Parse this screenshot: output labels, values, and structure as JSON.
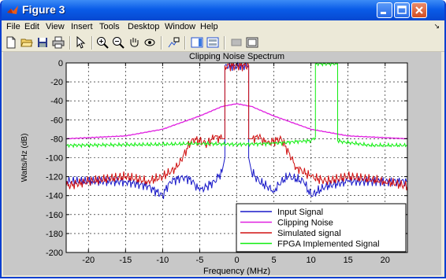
{
  "window": {
    "title": "Figure 3"
  },
  "menu": {
    "items": [
      "File",
      "Edit",
      "View",
      "Insert",
      "Tools",
      "Desktop",
      "Window",
      "Help"
    ]
  },
  "toolbar": {
    "icons": [
      "new-file-icon",
      "open-folder-icon",
      "save-icon",
      "print-icon",
      "arrow-select-icon",
      "zoom-in-icon",
      "zoom-out-icon",
      "pan-hand-icon",
      "rotate-3d-icon",
      "data-cursor-icon",
      "insert-colorbar-icon",
      "insert-legend-icon",
      "hide-plot-tools-icon",
      "show-plot-tools-icon"
    ]
  },
  "colors": {
    "input": "#1818c8",
    "clipping": "#e020e0",
    "simulated": "#d01010",
    "fpga": "#10ee10"
  },
  "chart_data": {
    "type": "line",
    "title": "Clipping Noise Spectrum",
    "xlabel": "Frequency (MHz)",
    "ylabel": "Watts/Hz (dB)",
    "xlim": [
      -23,
      23
    ],
    "ylim": [
      -200,
      0
    ],
    "xticks": [
      -20,
      -15,
      -10,
      -5,
      0,
      5,
      10,
      15,
      20
    ],
    "yticks": [
      0,
      -20,
      -40,
      -60,
      -80,
      -100,
      -120,
      -140,
      -160,
      -180,
      -200
    ],
    "grid": true,
    "legend_position": "bottom-right",
    "series": [
      {
        "name": "Input Signal",
        "x": [
          -23,
          -15,
          -12,
          -10,
          -9,
          -7,
          -6,
          -5,
          -4,
          -3,
          -2,
          -1.6,
          -1.6,
          1.6,
          1.6,
          2,
          3,
          4,
          5,
          6,
          7,
          9,
          10,
          12,
          15,
          23
        ],
        "y": [
          -125,
          -125,
          -130,
          -140,
          -125,
          -120,
          -125,
          -135,
          -130,
          -125,
          -115,
          -100,
          -3,
          -3,
          -100,
          -115,
          -125,
          -130,
          -135,
          -125,
          -120,
          -125,
          -140,
          -130,
          -125,
          -125
        ]
      },
      {
        "name": "Clipping Noise",
        "x": [
          -23,
          -15,
          -10,
          -5,
          -2,
          0,
          2,
          5,
          10,
          15,
          23
        ],
        "y": [
          -80,
          -77,
          -70,
          -56,
          -46,
          -43,
          -46,
          -56,
          -70,
          -77,
          -80
        ]
      },
      {
        "name": "Simulated signal",
        "x": [
          -23,
          -20,
          -15,
          -12,
          -10,
          -8,
          -6,
          -4,
          -3,
          -2,
          -1.6,
          -1.6,
          1.6,
          1.6,
          2,
          3,
          4,
          6,
          8,
          10,
          12,
          15,
          20,
          23
        ],
        "y": [
          -130,
          -125,
          -120,
          -125,
          -120,
          -110,
          -80,
          -85,
          -78,
          -80,
          -80,
          -3,
          -3,
          -80,
          -80,
          -78,
          -85,
          -80,
          -110,
          -120,
          -125,
          -120,
          -125,
          -130
        ]
      },
      {
        "name": "FPGA Implemented Signal",
        "x": [
          -23,
          -10,
          -5,
          0,
          5,
          8,
          10,
          10.6,
          10.6,
          13.6,
          13.6,
          14,
          18,
          23
        ],
        "y": [
          -87,
          -86,
          -85,
          -86,
          -85,
          -83,
          -82,
          -78,
          -1,
          -1,
          -82,
          -83,
          -87,
          -87
        ]
      }
    ]
  }
}
